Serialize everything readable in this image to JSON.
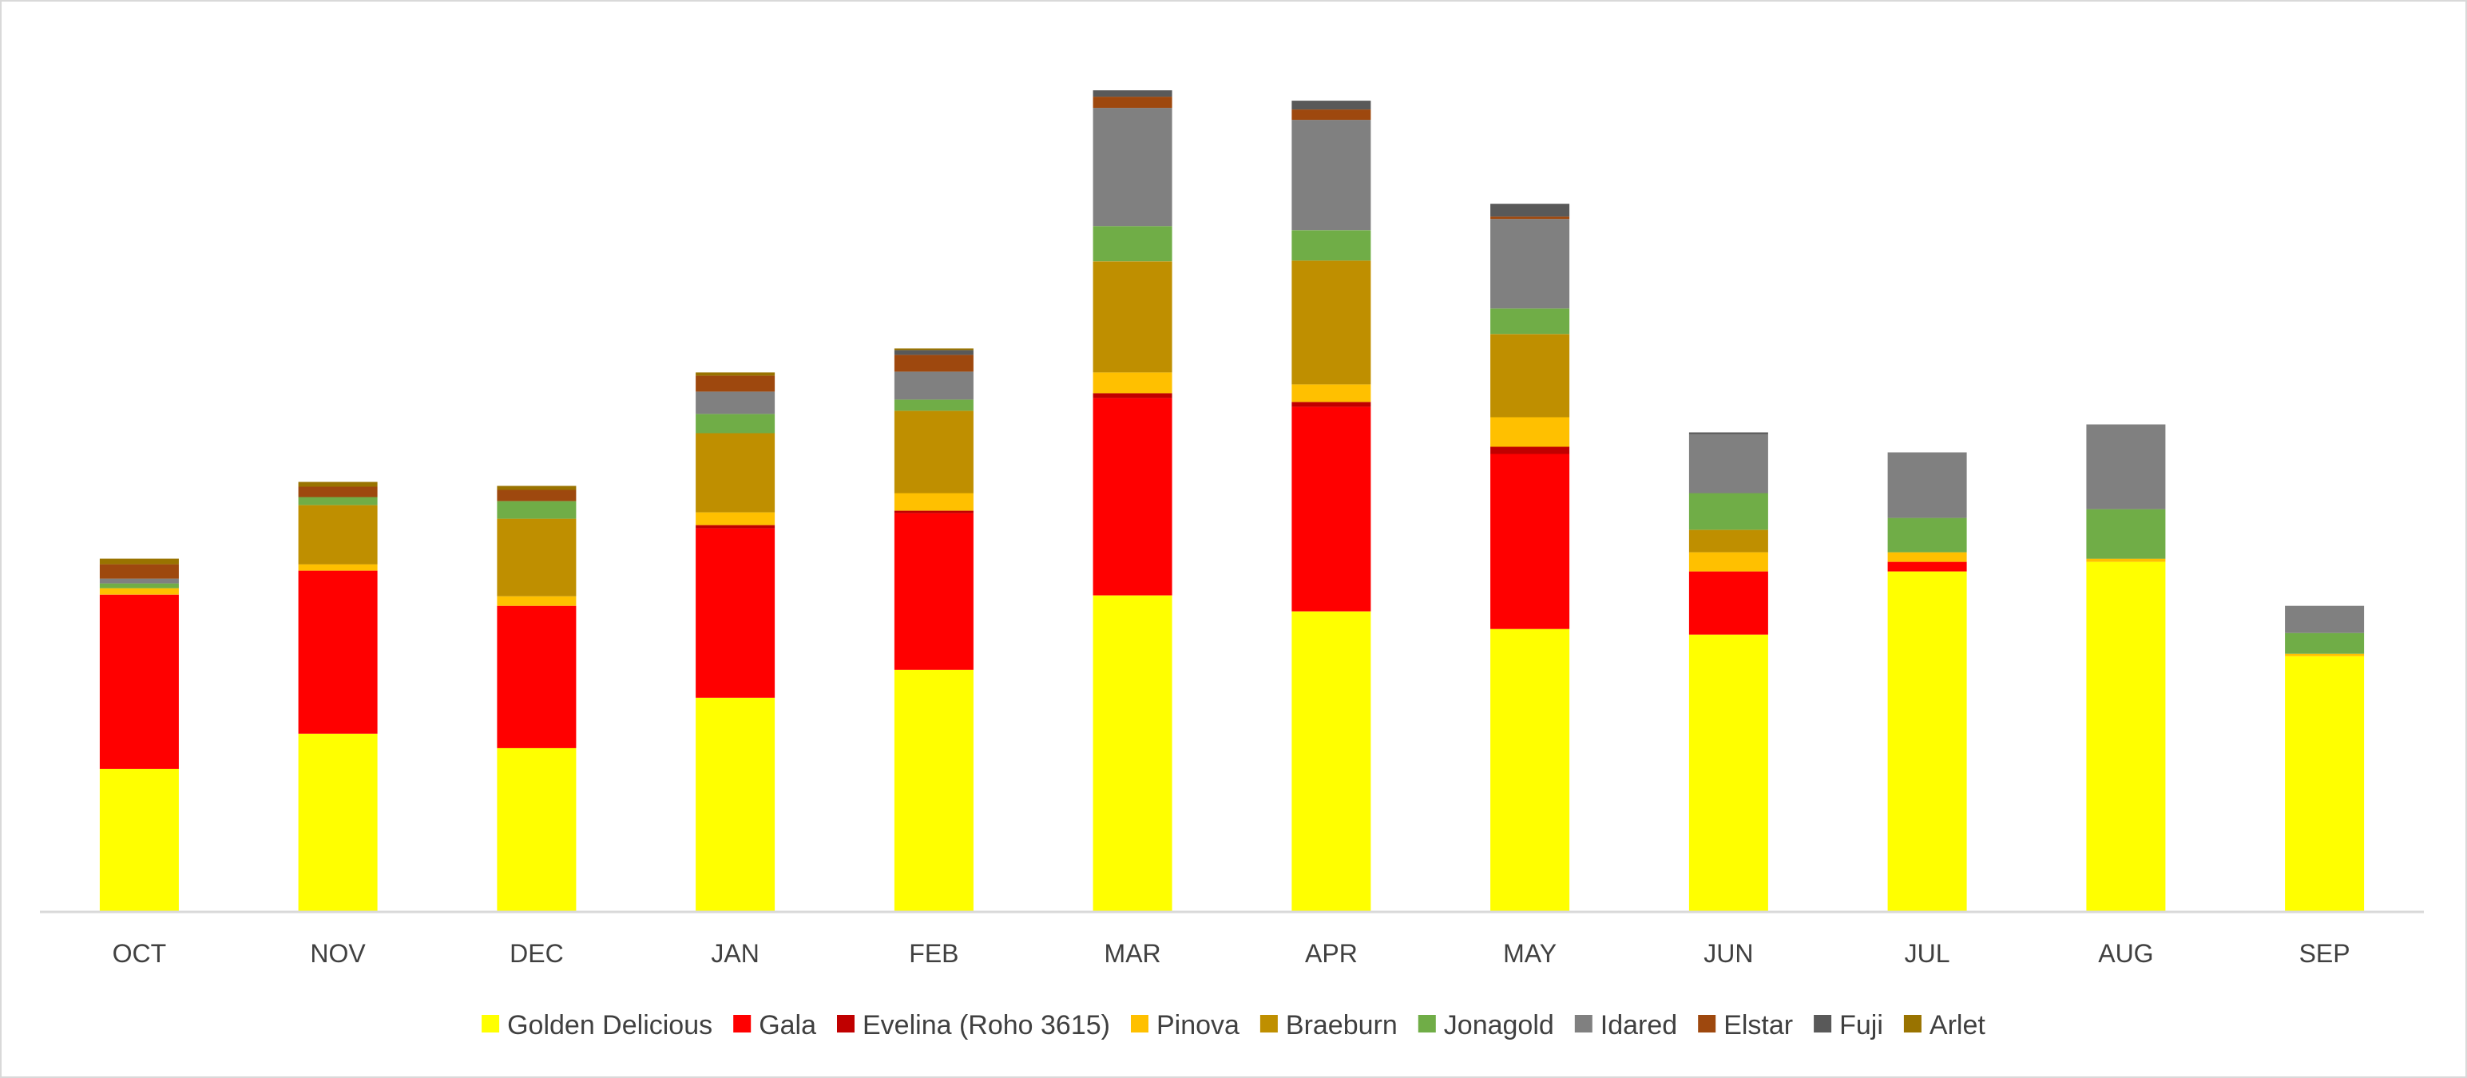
{
  "chart_data": {
    "type": "bar",
    "stacked": true,
    "categories": [
      "OCT",
      "NOV",
      "DEC",
      "JAN",
      "FEB",
      "MAR",
      "APR",
      "MAY",
      "JUN",
      "JUL",
      "AUG",
      "SEP"
    ],
    "title": "",
    "xlabel": "",
    "ylabel": "",
    "ylim": [
      0,
      1140
    ],
    "grid": false,
    "legend": "bottom",
    "series": [
      {
        "name": "Golden Delicious",
        "color": "#FFFF00",
        "values": [
          178,
          222,
          204,
          267,
          302,
          395,
          375,
          353,
          346,
          425,
          437,
          319
        ]
      },
      {
        "name": "Gala",
        "color": "#FF0000",
        "values": [
          218,
          204,
          178,
          212,
          196,
          247,
          256,
          219,
          79,
          12,
          0,
          0
        ]
      },
      {
        "name": "Evelina (Roho 3615)",
        "color": "#C00000",
        "values": [
          0,
          0,
          0,
          4,
          3,
          6,
          6,
          9,
          0,
          0,
          0,
          0
        ]
      },
      {
        "name": "Pinova",
        "color": "#FFC000",
        "values": [
          8,
          8,
          12,
          16,
          22,
          26,
          22,
          37,
          24,
          12,
          4,
          3
        ]
      },
      {
        "name": "Braeburn",
        "color": "#BF8F00",
        "values": [
          0,
          74,
          97,
          99,
          103,
          139,
          155,
          104,
          28,
          0,
          0,
          0
        ]
      },
      {
        "name": "Jonagold",
        "color": "#70AD47",
        "values": [
          6,
          10,
          22,
          24,
          14,
          44,
          38,
          32,
          46,
          43,
          62,
          26
        ]
      },
      {
        "name": "Idared",
        "color": "#808080",
        "values": [
          6,
          0,
          0,
          28,
          35,
          148,
          138,
          112,
          74,
          82,
          106,
          34
        ]
      },
      {
        "name": "Elstar",
        "color": "#9E480E",
        "values": [
          18,
          13,
          14,
          20,
          21,
          14,
          13,
          3,
          0,
          0,
          0,
          0
        ]
      },
      {
        "name": "Fuji",
        "color": "#595959",
        "values": [
          0,
          0,
          0,
          0,
          6,
          8,
          11,
          16,
          2,
          0,
          0,
          0
        ]
      },
      {
        "name": "Arlet",
        "color": "#997300",
        "values": [
          7,
          6,
          5,
          4,
          2,
          0,
          0,
          0,
          0,
          0,
          0,
          0
        ]
      }
    ]
  },
  "style": {
    "axis_color": "#D9D9D9",
    "text_color": "#404040",
    "background": "#FFFFFF"
  }
}
